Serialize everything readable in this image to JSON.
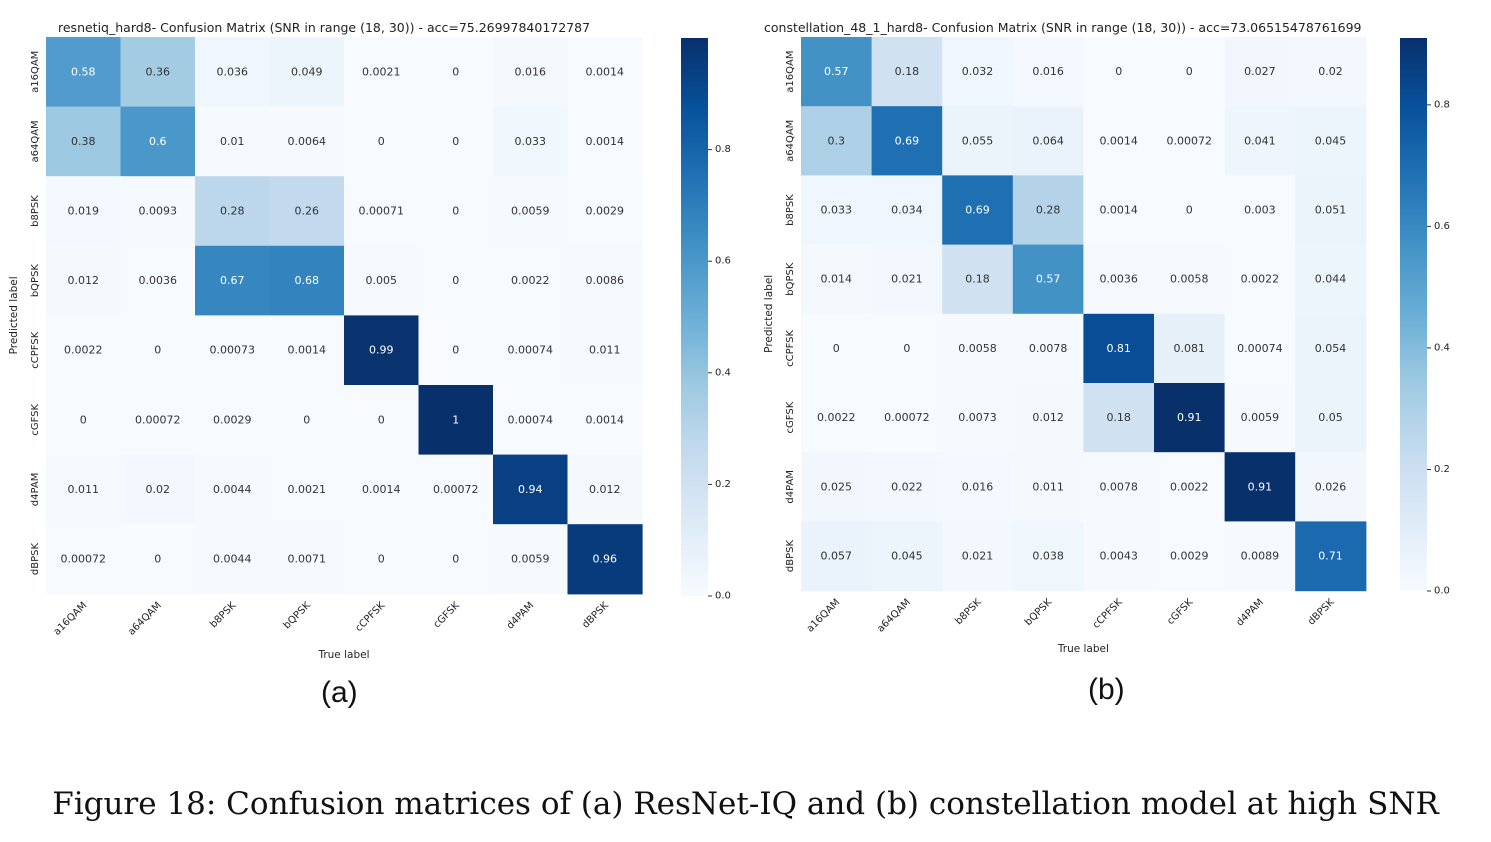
{
  "caption": "Figure 18: Confusion matrices of (a) ResNet-IQ and (b) constellation model at high SNR",
  "panel_labels": [
    "(a)",
    "(b)"
  ],
  "colormap": [
    "#f7fbff",
    "#deebf7",
    "#c6dbef",
    "#9ecae1",
    "#6baed6",
    "#4292c6",
    "#2171b5",
    "#08519c",
    "#08306b"
  ],
  "chart_data": [
    {
      "type": "heatmap",
      "title": "resnetiq_hard8- Confusion Matrix (SNR in range (18, 30)) - acc=75.26997840172787",
      "xlabel": "True label",
      "ylabel": "Predicted label",
      "x_categories": [
        "a16QAM",
        "a64QAM",
        "b8PSK",
        "bQPSK",
        "cCPFSK",
        "cGFSK",
        "d4PAM",
        "dBPSK"
      ],
      "y_categories": [
        "a16QAM",
        "a64QAM",
        "b8PSK",
        "bQPSK",
        "cCPFSK",
        "cGFSK",
        "d4PAM",
        "dBPSK"
      ],
      "values": [
        [
          "0.58",
          "0.36",
          "0.036",
          "0.049",
          "0.0021",
          "0",
          "0.016",
          "0.0014"
        ],
        [
          "0.38",
          "0.6",
          "0.01",
          "0.0064",
          "0",
          "0",
          "0.033",
          "0.0014"
        ],
        [
          "0.019",
          "0.0093",
          "0.28",
          "0.26",
          "0.00071",
          "0",
          "0.0059",
          "0.0029"
        ],
        [
          "0.012",
          "0.0036",
          "0.67",
          "0.68",
          "0.005",
          "0",
          "0.0022",
          "0.0086"
        ],
        [
          "0.0022",
          "0",
          "0.00073",
          "0.0014",
          "0.99",
          "0",
          "0.00074",
          "0.011"
        ],
        [
          "0",
          "0.00072",
          "0.0029",
          "0",
          "0",
          "1",
          "0.00074",
          "0.0014"
        ],
        [
          "0.011",
          "0.02",
          "0.0044",
          "0.0021",
          "0.0014",
          "0.00072",
          "0.94",
          "0.012"
        ],
        [
          "0.00072",
          "0",
          "0.0044",
          "0.0071",
          "0",
          "0",
          "0.0059",
          "0.96"
        ]
      ],
      "colorbar_range": [
        0,
        1
      ],
      "colorbar_ticks": [
        "0.0",
        "0.2",
        "0.4",
        "0.6",
        "0.8"
      ],
      "colorbar_tick_values": [
        0,
        0.2,
        0.4,
        0.6,
        0.8
      ]
    },
    {
      "type": "heatmap",
      "title": "constellation_48_1_hard8- Confusion Matrix (SNR in range (18, 30)) - acc=73.06515478761699",
      "xlabel": "True label",
      "ylabel": "Predicted label",
      "x_categories": [
        "a16QAM",
        "a64QAM",
        "b8PSK",
        "bQPSK",
        "cCPFSK",
        "cGFSK",
        "d4PAM",
        "dBPSK"
      ],
      "y_categories": [
        "a16QAM",
        "a64QAM",
        "b8PSK",
        "bQPSK",
        "cCPFSK",
        "cGFSK",
        "d4PAM",
        "dBPSK"
      ],
      "values": [
        [
          "0.57",
          "0.18",
          "0.032",
          "0.016",
          "0",
          "0",
          "0.027",
          "0.02"
        ],
        [
          "0.3",
          "0.69",
          "0.055",
          "0.064",
          "0.0014",
          "0.00072",
          "0.041",
          "0.045"
        ],
        [
          "0.033",
          "0.034",
          "0.69",
          "0.28",
          "0.0014",
          "0",
          "0.003",
          "0.051"
        ],
        [
          "0.014",
          "0.021",
          "0.18",
          "0.57",
          "0.0036",
          "0.0058",
          "0.0022",
          "0.044"
        ],
        [
          "0",
          "0",
          "0.0058",
          "0.0078",
          "0.81",
          "0.081",
          "0.00074",
          "0.054"
        ],
        [
          "0.0022",
          "0.00072",
          "0.0073",
          "0.012",
          "0.18",
          "0.91",
          "0.0059",
          "0.05"
        ],
        [
          "0.025",
          "0.022",
          "0.016",
          "0.011",
          "0.0078",
          "0.0022",
          "0.91",
          "0.026"
        ],
        [
          "0.057",
          "0.045",
          "0.021",
          "0.038",
          "0.0043",
          "0.0029",
          "0.0089",
          "0.71"
        ]
      ],
      "colorbar_range": [
        0,
        0.91
      ],
      "colorbar_ticks": [
        "0.0",
        "0.2",
        "0.4",
        "0.6",
        "0.8"
      ],
      "colorbar_tick_values": [
        0,
        0.2,
        0.4,
        0.6,
        0.8
      ]
    }
  ]
}
